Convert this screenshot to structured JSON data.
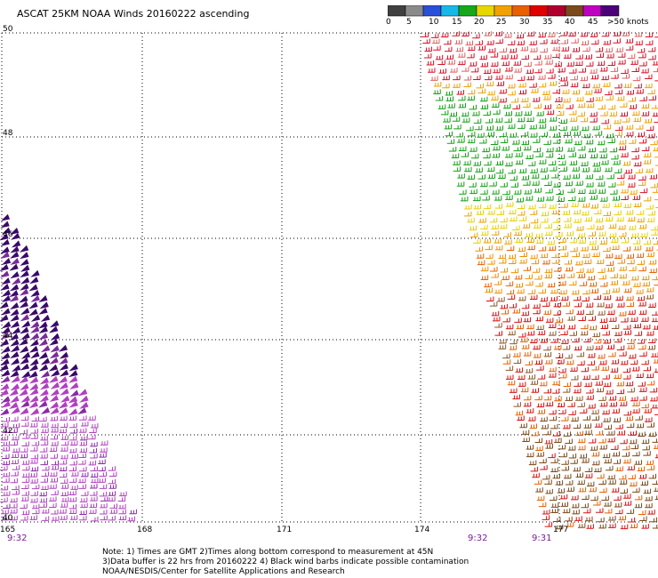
{
  "title": "ASCAT 25KM NOAA Winds 20160222 ascending",
  "legend": {
    "colors": [
      "#404040",
      "#8a8a8a",
      "#2a4fd8",
      "#17b8e8",
      "#17a81a",
      "#e8d600",
      "#f2a200",
      "#e86000",
      "#e00000",
      "#b00030",
      "#7a4a1a",
      "#c000c0",
      "#4b007a"
    ],
    "labels": [
      "0",
      "5",
      "10",
      "15",
      "20",
      "25",
      "30",
      "35",
      "40",
      "45",
      ">50 knots"
    ]
  },
  "axes": {
    "lat_labels": [
      "50",
      "48",
      "46",
      "44",
      "42",
      "40"
    ],
    "lon_labels": [
      "165",
      "168",
      "171",
      "174",
      "177"
    ]
  },
  "times": [
    "9:32",
    "9:32",
    "9:31"
  ],
  "notes": [
    "Note: 1) Times are GMT 2)Times along bottom correspond to measurement at 45N",
    "3)Data buffer is 22 hrs from 20160222 4) Black wind barbs indicate possible contamination",
    "NOAA/NESDIS/Center for Satellite Applications and Research"
  ]
}
